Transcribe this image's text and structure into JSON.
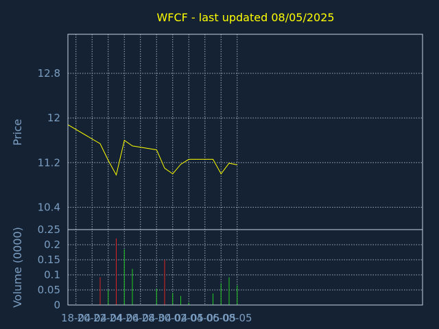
{
  "colors": {
    "background": "#142233",
    "text": "#7b9ec2",
    "title": "#ffff00",
    "frame": "#c8d4e0",
    "grid": "#9fb0c4",
    "price_line": "#ffff00",
    "volume_up": "#22cc22",
    "volume_down": "#dd2222"
  },
  "chart_data": [
    {
      "type": "line",
      "title": "WFCF - last updated 08/05/2025",
      "ylabel": "Price",
      "ylim": [
        10.0,
        13.5
      ],
      "yticks": [
        10.4,
        11.2,
        12,
        12.8
      ],
      "ytick_labels": [
        "10.4",
        "11.2",
        "12",
        "12.8"
      ],
      "grid": true,
      "series": [
        {
          "x": [
            "2025-04-17",
            "2025-04-21",
            "2025-04-22",
            "2025-04-23",
            "2025-04-24",
            "2025-04-25",
            "2025-04-28",
            "2025-04-29",
            "2025-04-30",
            "2025-05-01",
            "2025-05-02",
            "2025-05-05",
            "2025-05-06",
            "2025-05-07",
            "2025-05-08"
          ],
          "values": [
            11.88,
            11.54,
            11.24,
            10.98,
            11.6,
            11.5,
            11.43,
            11.1,
            11.0,
            11.17,
            11.26,
            11.26,
            11.0,
            11.19,
            11.16
          ]
        }
      ]
    },
    {
      "type": "bar",
      "ylabel": "Volume (0000)",
      "ylim": [
        0,
        0.25
      ],
      "yticks": [
        0,
        0.05,
        0.1,
        0.15,
        0.2,
        0.25
      ],
      "ytick_labels": [
        "0",
        "0.05",
        "0.1",
        "0.15",
        "0.2",
        "0.25"
      ],
      "grid": true,
      "x": [
        "2025-04-21",
        "2025-04-22",
        "2025-04-23",
        "2025-04-24",
        "2025-04-25",
        "2025-04-28",
        "2025-04-29",
        "2025-04-30",
        "2025-05-01",
        "2025-05-02",
        "2025-05-05",
        "2025-05-06",
        "2025-05-07",
        "2025-05-08"
      ],
      "values": [
        0.092,
        0.05,
        0.221,
        0.185,
        0.12,
        0.055,
        0.15,
        0.04,
        0.03,
        0.008,
        0.038,
        0.072,
        0.092,
        0.065
      ],
      "direction": [
        "down",
        "up",
        "down",
        "up",
        "up",
        "up",
        "down",
        "up",
        "up",
        "up",
        "up",
        "up",
        "up",
        "up"
      ],
      "xtick_labels": [
        "18-04",
        "20-04",
        "22-04",
        "24-04",
        "26-04",
        "28-04",
        "30-04",
        "02-05",
        "04-05",
        "06-05",
        "08-05"
      ]
    }
  ]
}
